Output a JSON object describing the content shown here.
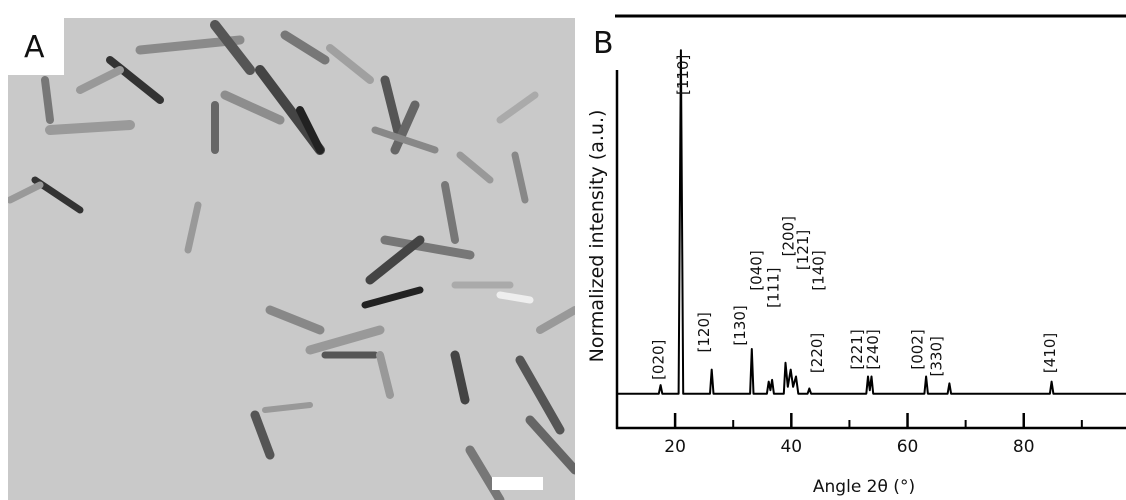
{
  "panels": {
    "a": "A",
    "b": "B"
  },
  "chart_data": {
    "type": "line",
    "xlabel": "Angle 2θ (°)",
    "ylabel": "Normalized intensity (a.u.)",
    "color": "#000000",
    "x": [
      10,
      17.2,
      17.5,
      17.8,
      20.6,
      21,
      21.4,
      26,
      26.3,
      26.6,
      32.9,
      33.2,
      33.5,
      35.8,
      36.1,
      36.4,
      36.7,
      37,
      38.7,
      39,
      39.4,
      39.9,
      40.3,
      40.8,
      41.2,
      42.8,
      43.1,
      43.4,
      52.9,
      53.2,
      53.5,
      53.8,
      54.1,
      54.4,
      62.9,
      63.2,
      63.5,
      66.9,
      67.2,
      67.5,
      84.5,
      84.8,
      85.1,
      97.6
    ],
    "values": [
      0,
      0,
      0.025,
      0,
      0,
      1,
      0,
      0,
      0.07,
      0,
      0,
      0.13,
      0,
      0,
      0.035,
      0.01,
      0.04,
      0,
      0,
      0.09,
      0.02,
      0.07,
      0.02,
      0.05,
      0,
      0,
      0.015,
      0,
      0,
      0.05,
      0.01,
      0.05,
      0,
      0,
      0,
      0.05,
      0,
      0,
      0.03,
      0,
      0,
      0.035,
      0,
      0
    ],
    "xlim": [
      10,
      97.6
    ],
    "ylim": [
      -0.1,
      1.1
    ],
    "xticks": [
      20,
      40,
      60,
      80
    ],
    "xminorticks": [
      30,
      50,
      70,
      90
    ],
    "annotations": [
      {
        "text": "[020]",
        "x": 17.1,
        "y": 0.04
      },
      {
        "text": "[110]",
        "x": 21.4,
        "y": 0.87
      },
      {
        "text": "[120]",
        "x": 25.0,
        "y": 0.12
      },
      {
        "text": "[130]",
        "x": 31.2,
        "y": 0.14
      },
      {
        "text": "[040]",
        "x": 34.0,
        "y": 0.3
      },
      {
        "text": "[111]",
        "x": 36.9,
        "y": 0.25
      },
      {
        "text": "[200]",
        "x": 39.5,
        "y": 0.4
      },
      {
        "text": "[121]",
        "x": 42.0,
        "y": 0.36
      },
      {
        "text": "[140]",
        "x": 44.7,
        "y": 0.3
      },
      {
        "text": "[220]",
        "x": 44.4,
        "y": 0.06
      },
      {
        "text": "[221]",
        "x": 51.3,
        "y": 0.07
      },
      {
        "text": "[240]",
        "x": 54.1,
        "y": 0.07
      },
      {
        "text": "[002]",
        "x": 61.7,
        "y": 0.07
      },
      {
        "text": "[330]",
        "x": 65.0,
        "y": 0.05
      },
      {
        "text": "[410]",
        "x": 84.5,
        "y": 0.06
      }
    ]
  }
}
